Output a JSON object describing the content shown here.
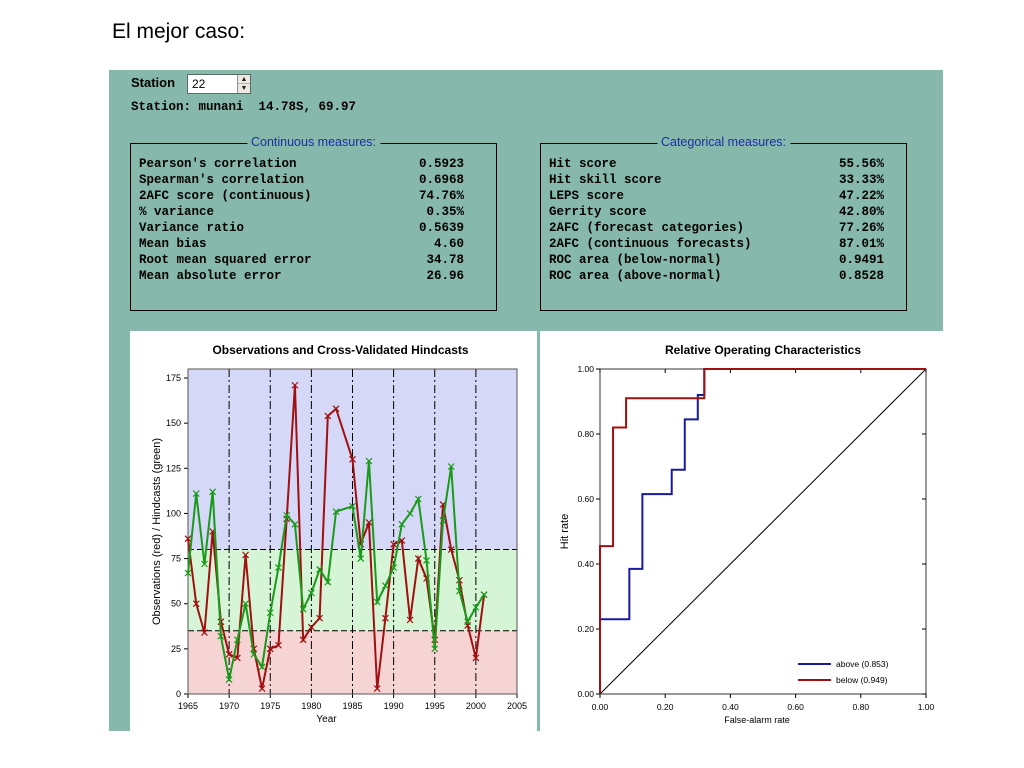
{
  "slide_title": "El mejor caso:",
  "station": {
    "label": "Station",
    "value": "22",
    "info": "Station: munani  14.78S, 69.97"
  },
  "continuous": {
    "title": "Continuous measures:",
    "rows": [
      {
        "label": "Pearson's correlation",
        "value": "0.5923"
      },
      {
        "label": "Spearman's correlation",
        "value": "0.6968"
      },
      {
        "label": "2AFC score (continuous)",
        "value": "74.76%"
      },
      {
        "label": "% variance",
        "value": "0.35%"
      },
      {
        "label": "Variance ratio",
        "value": "0.5639"
      },
      {
        "label": "Mean bias",
        "value": "4.60"
      },
      {
        "label": "Root mean squared error",
        "value": "34.78"
      },
      {
        "label": "Mean absolute error",
        "value": "26.96"
      }
    ]
  },
  "categorical": {
    "title": "Categorical measures:",
    "rows": [
      {
        "label": "Hit score",
        "value": "55.56%"
      },
      {
        "label": "Hit skill score",
        "value": "33.33%"
      },
      {
        "label": "LEPS score",
        "value": "47.22%"
      },
      {
        "label": "Gerrity score",
        "value": "42.80%"
      },
      {
        "label": "2AFC (forecast categories)",
        "value": "77.26%"
      },
      {
        "label": "2AFC (continuous forecasts)",
        "value": "87.01%"
      },
      {
        "label": "ROC area (below-normal)",
        "value": "0.9491"
      },
      {
        "label": "ROC area (above-normal)",
        "value": "0.8528"
      }
    ]
  },
  "colors": {
    "panel_bg": "#86b8ab",
    "observed": "#a01010",
    "hindcast": "#1a9a1a",
    "above_band": "#d6d8f7",
    "normal_band": "#d6f5d6",
    "below_band": "#f7d4d4",
    "roc_above": "#1a1aa0",
    "roc_below": "#a01010"
  },
  "chart_data": [
    {
      "type": "line",
      "title": "Observations and Cross-Validated Hindcasts",
      "xlabel": "Year",
      "ylabel": "Observations (red) / Hindcasts (green)",
      "xlim": [
        1965,
        2005
      ],
      "ylim": [
        0,
        180
      ],
      "x_ticks": [
        "1965",
        "1970",
        "1975",
        "1980",
        "1985",
        "1990",
        "1995",
        "2000",
        "2005"
      ],
      "y_ticks": [
        "0",
        "25",
        "50",
        "75",
        "100",
        "125",
        "150",
        "175"
      ],
      "category_thresholds": [
        35,
        80
      ],
      "x": [
        1965,
        1966,
        1967,
        1968,
        1969,
        1970,
        1971,
        1972,
        1973,
        1974,
        1975,
        1976,
        1977,
        1978,
        1979,
        1980,
        1981,
        1982,
        1983,
        1985,
        1986,
        1987,
        1988,
        1989,
        1990,
        1991,
        1992,
        1993,
        1994,
        1995,
        1996,
        1997,
        1998,
        1999,
        2000,
        2001
      ],
      "series": [
        {
          "name": "Observations",
          "values": [
            86,
            50,
            34,
            90,
            40,
            22,
            20,
            77,
            25,
            3,
            25,
            27,
            97,
            171,
            30,
            37,
            42,
            154,
            158,
            130,
            83,
            95,
            3,
            42,
            83,
            85,
            41,
            75,
            64,
            30,
            105,
            80,
            63,
            38,
            20,
            55
          ]
        },
        {
          "name": "Hindcasts",
          "values": [
            67,
            111,
            72,
            112,
            32,
            8,
            30,
            50,
            22,
            15,
            45,
            70,
            99,
            94,
            47,
            56,
            69,
            62,
            101,
            104,
            75,
            129,
            51,
            60,
            70,
            94,
            100,
            108,
            74,
            25,
            96,
            126,
            57,
            40,
            48,
            55
          ]
        }
      ]
    },
    {
      "type": "line",
      "title": "Relative Operating Characteristics",
      "xlabel": "False-alarm rate",
      "ylabel": "Hit rate",
      "xlim": [
        0,
        1
      ],
      "ylim": [
        0,
        1
      ],
      "x_ticks": [
        "0.00",
        "0.20",
        "0.40",
        "0.60",
        "0.80",
        "1.00"
      ],
      "y_ticks": [
        "0.00",
        "0.20",
        "0.40",
        "0.60",
        "0.80",
        "1.00"
      ],
      "series": [
        {
          "name": "above (0.853)",
          "points": [
            [
              0,
              0
            ],
            [
              0,
              0.23
            ],
            [
              0.09,
              0.23
            ],
            [
              0.09,
              0.385
            ],
            [
              0.13,
              0.385
            ],
            [
              0.13,
              0.615
            ],
            [
              0.22,
              0.615
            ],
            [
              0.22,
              0.69
            ],
            [
              0.26,
              0.69
            ],
            [
              0.26,
              0.845
            ],
            [
              0.3,
              0.845
            ],
            [
              0.3,
              0.92
            ],
            [
              0.32,
              0.92
            ],
            [
              0.32,
              1.0
            ],
            [
              1.0,
              1.0
            ]
          ]
        },
        {
          "name": "below (0.949)",
          "points": [
            [
              0,
              0
            ],
            [
              0,
              0.455
            ],
            [
              0.04,
              0.455
            ],
            [
              0.04,
              0.82
            ],
            [
              0.08,
              0.82
            ],
            [
              0.08,
              0.91
            ],
            [
              0.32,
              0.91
            ],
            [
              0.32,
              1.0
            ],
            [
              1.0,
              1.0
            ]
          ]
        }
      ]
    }
  ]
}
